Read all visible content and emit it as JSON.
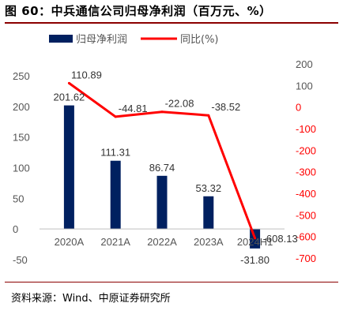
{
  "header": {
    "title": "图 60：中兵通信公司归母净利润（百万元、%）"
  },
  "footer": {
    "source": "资料来源：Wind、中原证券研究所"
  },
  "colors": {
    "bar": "#002060",
    "line": "#ff0000",
    "axis_text_left": "#555555",
    "axis_text_right": "#ff0000",
    "title_rule": "#8b0000"
  },
  "chart_data": {
    "type": "bar",
    "categories": [
      "2020A",
      "2021A",
      "2022A",
      "2023A",
      "2024H1"
    ],
    "series": [
      {
        "name": "归母净利润",
        "type": "bar",
        "axis": "left",
        "values": [
          201.62,
          111.31,
          86.74,
          53.32,
          -31.8
        ],
        "labels": [
          "201.62",
          "111.31",
          "86.74",
          "53.32",
          "-31.80"
        ]
      },
      {
        "name": "同比(%)",
        "type": "line",
        "axis": "right",
        "values": [
          110.89,
          -44.81,
          -22.08,
          -38.52,
          -608.13
        ],
        "labels": [
          "110.89",
          "-44.81",
          "-22.08",
          "-38.52",
          "-608.13"
        ]
      }
    ],
    "y_left": {
      "min": -50,
      "max": 250,
      "ticks": [
        250,
        200,
        150,
        100,
        50,
        0,
        -50
      ]
    },
    "y_right": {
      "min": -700,
      "max": 200,
      "ticks": [
        200,
        100,
        0,
        -100,
        -200,
        -300,
        -400,
        -500,
        -600,
        -700
      ]
    },
    "legend": "top-left",
    "grid": false
  }
}
